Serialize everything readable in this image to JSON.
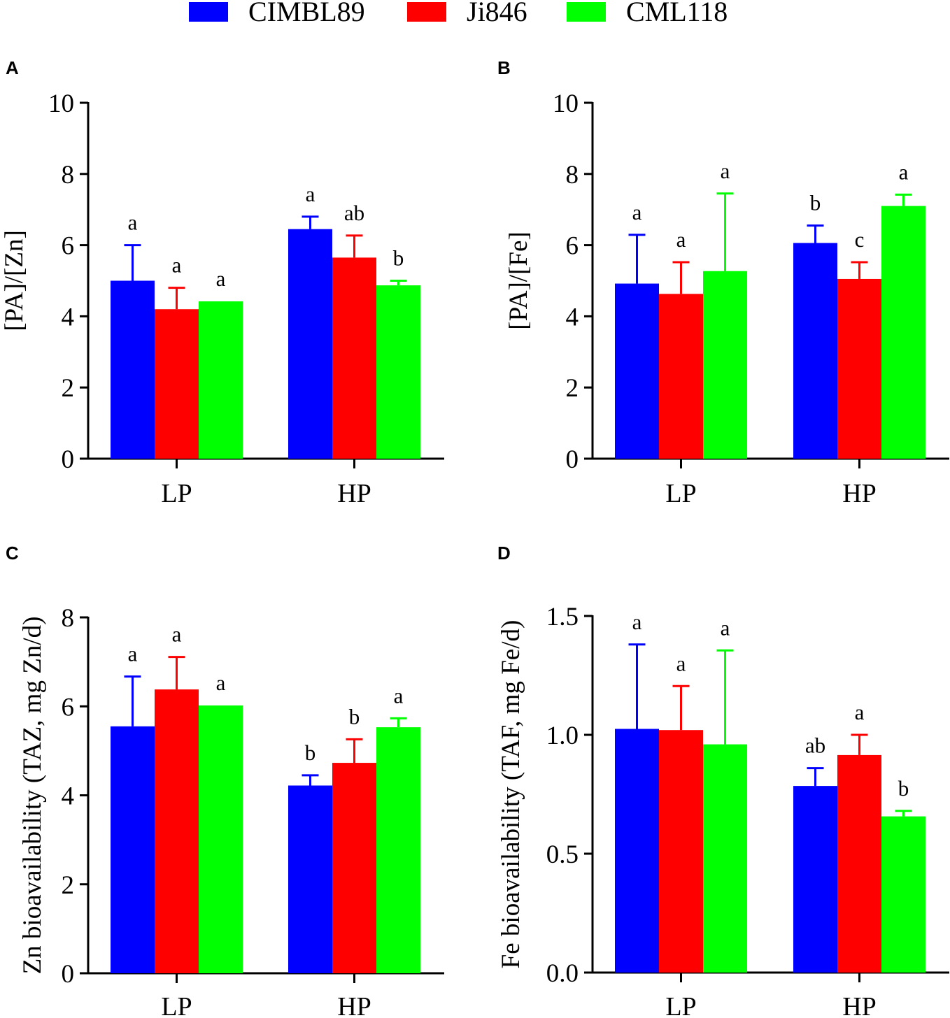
{
  "legend": [
    {
      "name": "CIMBL89",
      "color": "#0000ff"
    },
    {
      "name": "Ji846",
      "color": "#ff0000"
    },
    {
      "name": "CML118",
      "color": "#00ff00"
    }
  ],
  "chart_data": [
    {
      "panel": "A",
      "type": "bar",
      "ylabel": "[PA]/[Zn]",
      "categories": [
        "LP",
        "HP"
      ],
      "ylim": [
        0,
        10
      ],
      "yticks": [
        0,
        2,
        4,
        6,
        8,
        10
      ],
      "series": [
        {
          "name": "CIMBL89",
          "values": [
            5.0,
            6.45
          ],
          "errors": [
            1.0,
            0.35
          ],
          "letters": [
            "a",
            "a"
          ]
        },
        {
          "name": "Ji846",
          "values": [
            4.2,
            5.65
          ],
          "errors": [
            0.6,
            0.62
          ],
          "letters": [
            "a",
            "ab"
          ]
        },
        {
          "name": "CML118",
          "values": [
            4.42,
            4.87
          ],
          "errors": [
            0.0,
            0.13
          ],
          "letters": [
            "a",
            "b"
          ]
        }
      ]
    },
    {
      "panel": "B",
      "type": "bar",
      "ylabel": "[PA]/[Fe]",
      "categories": [
        "LP",
        "HP"
      ],
      "ylim": [
        0,
        10
      ],
      "yticks": [
        0,
        2,
        4,
        6,
        8,
        10
      ],
      "series": [
        {
          "name": "CIMBL89",
          "values": [
            4.92,
            6.06
          ],
          "errors": [
            1.37,
            0.49
          ],
          "letters": [
            "a",
            "b"
          ]
        },
        {
          "name": "Ji846",
          "values": [
            4.63,
            5.05
          ],
          "errors": [
            0.89,
            0.47
          ],
          "letters": [
            "a",
            "c"
          ]
        },
        {
          "name": "CML118",
          "values": [
            5.27,
            7.1
          ],
          "errors": [
            2.18,
            0.32
          ],
          "letters": [
            "a",
            "a"
          ]
        }
      ]
    },
    {
      "panel": "C",
      "type": "bar",
      "ylabel": "Zn bioavailability (TAZ, mg Zn/d)",
      "categories": [
        "LP",
        "HP"
      ],
      "ylim": [
        0,
        8
      ],
      "yticks": [
        0,
        2,
        4,
        6,
        8
      ],
      "series": [
        {
          "name": "CIMBL89",
          "values": [
            5.55,
            4.22
          ],
          "errors": [
            1.12,
            0.23
          ],
          "letters": [
            "a",
            "b"
          ]
        },
        {
          "name": "Ji846",
          "values": [
            6.38,
            4.73
          ],
          "errors": [
            0.73,
            0.53
          ],
          "letters": [
            "a",
            "b"
          ]
        },
        {
          "name": "CML118",
          "values": [
            6.02,
            5.53
          ],
          "errors": [
            0.0,
            0.2
          ],
          "letters": [
            "a",
            "a"
          ]
        }
      ]
    },
    {
      "panel": "D",
      "type": "bar",
      "ylabel": "Fe bioavailability (TAF, mg Fe/d)",
      "categories": [
        "LP",
        "HP"
      ],
      "ylim": [
        0,
        1.5
      ],
      "yticks": [
        0.0,
        0.5,
        1.0,
        1.5
      ],
      "series": [
        {
          "name": "CIMBL89",
          "values": [
            1.025,
            0.785
          ],
          "errors": [
            0.355,
            0.075
          ],
          "letters": [
            "a",
            "ab"
          ]
        },
        {
          "name": "Ji846",
          "values": [
            1.02,
            0.915
          ],
          "errors": [
            0.185,
            0.085
          ],
          "letters": [
            "a",
            "a"
          ]
        },
        {
          "name": "CML118",
          "values": [
            0.96,
            0.657
          ],
          "errors": [
            0.395,
            0.023
          ],
          "letters": [
            "a",
            "b"
          ]
        }
      ]
    }
  ]
}
